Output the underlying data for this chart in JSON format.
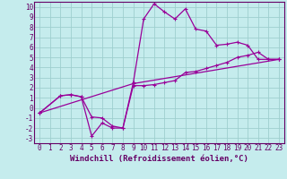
{
  "xlabel": "Windchill (Refroidissement éolien,°C)",
  "xlim": [
    -0.5,
    23.5
  ],
  "ylim": [
    -3.5,
    10.5
  ],
  "xticks": [
    0,
    1,
    2,
    3,
    4,
    5,
    6,
    7,
    8,
    9,
    10,
    11,
    12,
    13,
    14,
    15,
    16,
    17,
    18,
    19,
    20,
    21,
    22,
    23
  ],
  "yticks": [
    -3,
    -2,
    -1,
    0,
    1,
    2,
    3,
    4,
    5,
    6,
    7,
    8,
    9,
    10
  ],
  "background_color": "#c5eced",
  "grid_color": "#9ecfcf",
  "line_color": "#990099",
  "line1_x": [
    0,
    2,
    3,
    4,
    5,
    6,
    7,
    8,
    9,
    10,
    11,
    12,
    13,
    14,
    15,
    16,
    17,
    18,
    19,
    20,
    21,
    22,
    23
  ],
  "line1_y": [
    -0.5,
    1.2,
    1.3,
    1.1,
    -0.9,
    -1.0,
    -1.8,
    -2.0,
    2.5,
    8.8,
    10.3,
    9.5,
    8.8,
    9.8,
    7.8,
    7.6,
    6.2,
    6.3,
    6.5,
    6.2,
    4.8,
    4.8,
    4.8
  ],
  "line2_x": [
    0,
    2,
    3,
    4,
    5,
    6,
    7,
    8,
    9,
    10,
    11,
    12,
    13,
    14,
    15,
    16,
    17,
    18,
    19,
    20,
    21,
    22,
    23
  ],
  "line2_y": [
    -0.5,
    1.2,
    1.3,
    1.1,
    -2.8,
    -1.5,
    -2.0,
    -2.0,
    2.2,
    2.2,
    2.3,
    2.5,
    2.7,
    3.5,
    3.6,
    3.9,
    4.2,
    4.5,
    5.0,
    5.2,
    5.5,
    4.8,
    4.8
  ],
  "line3_x": [
    0,
    9,
    23
  ],
  "line3_y": [
    -0.5,
    2.4,
    4.8
  ],
  "font_size_ticks": 5.5,
  "font_size_label": 6.5
}
